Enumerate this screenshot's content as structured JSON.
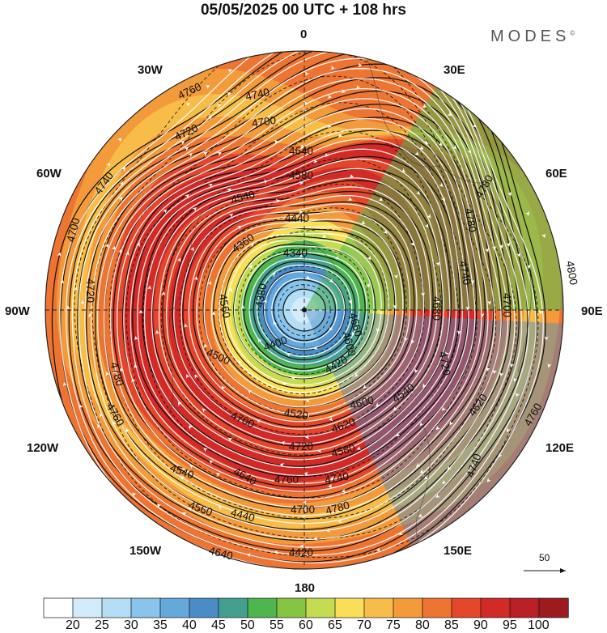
{
  "title": "05/05/2025  00 UTC  + 108 hrs",
  "brand": "MODES",
  "brand_mark": "©",
  "longitude_labels": {
    "lon_0": "0",
    "lon_30e": "30E",
    "lon_60e": "60E",
    "lon_90e": "90E",
    "lon_120e": "120E",
    "lon_150e": "150E",
    "lon_180": "180",
    "lon_150w": "150W",
    "lon_120w": "120W",
    "lon_90w": "90W",
    "lon_60w": "60W",
    "lon_30w": "30W"
  },
  "reference_vector": {
    "label": "50"
  },
  "contour_labels": [
    {
      "text": "4760"
    },
    {
      "text": "4740"
    },
    {
      "text": "4720"
    },
    {
      "text": "4700"
    },
    {
      "text": "4640"
    },
    {
      "text": "4580"
    },
    {
      "text": "4540"
    },
    {
      "text": "4440"
    },
    {
      "text": "4360"
    },
    {
      "text": "4340"
    },
    {
      "text": "4380"
    },
    {
      "text": "4400"
    },
    {
      "text": "4420"
    },
    {
      "text": "4560"
    },
    {
      "text": "4500"
    },
    {
      "text": "4600"
    },
    {
      "text": "4660"
    },
    {
      "text": "4680"
    },
    {
      "text": "4720"
    },
    {
      "text": "4740"
    },
    {
      "text": "4780"
    },
    {
      "text": "4800"
    },
    {
      "text": "4780"
    },
    {
      "text": "4760"
    },
    {
      "text": "4740"
    },
    {
      "text": "4700"
    },
    {
      "text": "4620"
    },
    {
      "text": "4600"
    },
    {
      "text": "4540"
    },
    {
      "text": "4520"
    },
    {
      "text": "4580"
    },
    {
      "text": "4700"
    },
    {
      "text": "4720"
    },
    {
      "text": "4740"
    },
    {
      "text": "4760"
    },
    {
      "text": "4780"
    },
    {
      "text": "4700"
    },
    {
      "text": "4640"
    },
    {
      "text": "4620"
    },
    {
      "text": "4540"
    },
    {
      "text": "4560"
    },
    {
      "text": "4440"
    },
    {
      "text": "4420"
    },
    {
      "text": "4640"
    },
    {
      "text": "4740"
    },
    {
      "text": "4700"
    },
    {
      "text": "4720"
    },
    {
      "text": "4780"
    },
    {
      "text": "4760"
    }
  ],
  "colorbar": {
    "colors": [
      "#ffffff",
      "#d2ecfb",
      "#b4def5",
      "#89c4ea",
      "#64a8dc",
      "#4a8cc6",
      "#44a08e",
      "#4fb54e",
      "#86c444",
      "#c5dc52",
      "#f9df58",
      "#f8bd48",
      "#f39b3a",
      "#ee7432",
      "#e4462b",
      "#d22a26",
      "#b92025",
      "#9c1b1f"
    ],
    "ticks": [
      "20",
      "25",
      "30",
      "35",
      "40",
      "45",
      "50",
      "55",
      "60",
      "65",
      "70",
      "75",
      "80",
      "85",
      "90",
      "95",
      "100"
    ]
  }
}
